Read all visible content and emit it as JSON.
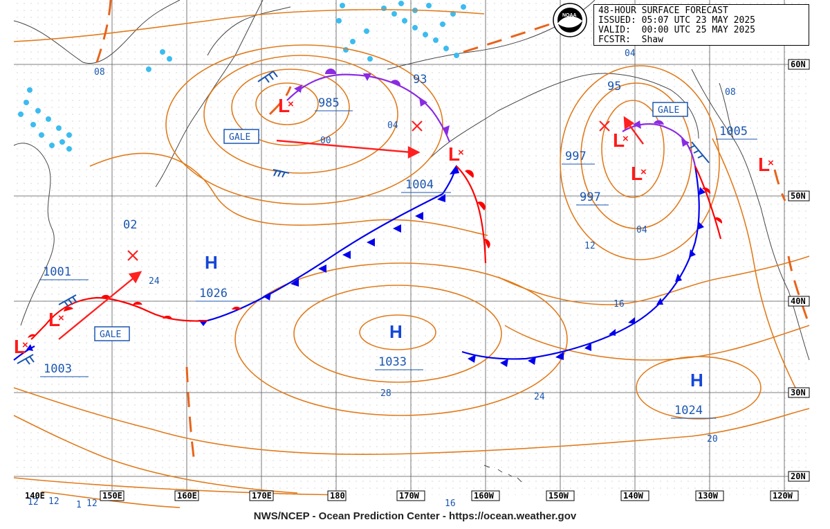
{
  "header": {
    "product": "48-HOUR SURFACE FORECAST",
    "issued_label": "ISSUED:",
    "issued": "05:07 UTC 23 MAY 2025",
    "valid_label": "VALID:",
    "valid": "00:00 UTC 25 MAY 2025",
    "forecaster_label": "FCSTR:",
    "forecaster": "Shaw",
    "logo_text": "NOAA"
  },
  "footer": "NWS/NCEP - Ocean Prediction Center - https://ocean.weather.gov",
  "latitude_labels": [
    "60N",
    "50N",
    "40N",
    "30N",
    "20N"
  ],
  "longitude_labels": [
    "140E",
    "150E",
    "160E",
    "170E",
    "180",
    "170W",
    "160W",
    "150W",
    "140W",
    "130W",
    "120W"
  ],
  "pressure_centers": [
    {
      "type": "L",
      "value": "985"
    },
    {
      "type": "L",
      "value": "1004"
    },
    {
      "type": "L",
      "value": "997"
    },
    {
      "type": "L",
      "value": "997"
    },
    {
      "type": "L",
      "value": "1005"
    },
    {
      "type": "L",
      "value": "1001"
    },
    {
      "type": "L",
      "value": "1003"
    },
    {
      "type": "H",
      "value": "1026"
    },
    {
      "type": "H",
      "value": "1033"
    },
    {
      "type": "H",
      "value": "1024"
    }
  ],
  "isobar_labels": [
    "08",
    "00",
    "04",
    "93",
    "04",
    "95",
    "08",
    "02",
    "24",
    "12",
    "04",
    "16",
    "28",
    "24",
    "20",
    "16",
    "12",
    "12",
    "12",
    "1"
  ],
  "warnings": [
    "GALE",
    "GALE",
    "GALE"
  ],
  "colors": {
    "isobar": "#e07b1c",
    "warm_front": "#ff0000",
    "cold_front": "#0000ee",
    "occluded_front": "#8a2be2",
    "high": "#1446d8",
    "low": "#ff0000",
    "label": "#1a56b0",
    "ice": "#3bbcf0"
  }
}
